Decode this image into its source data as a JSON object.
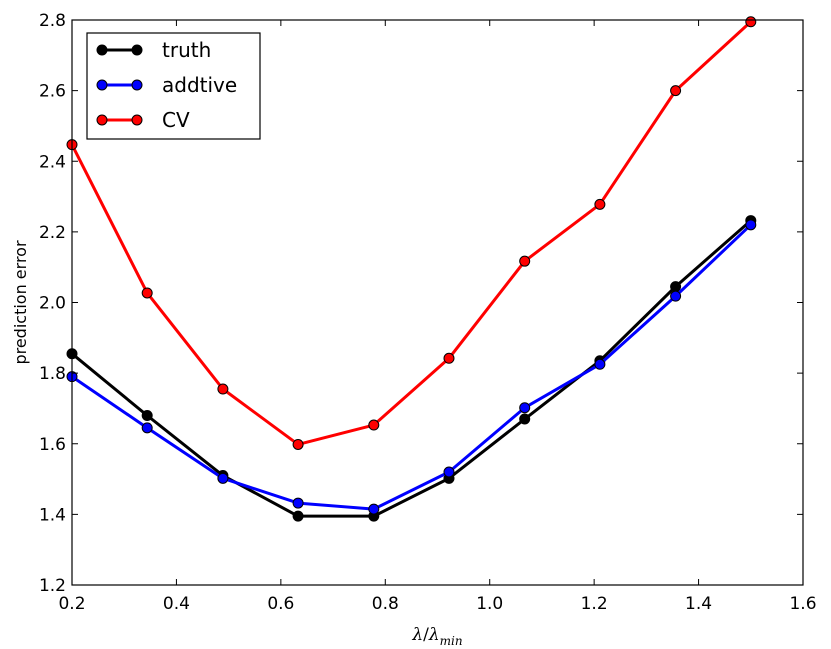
{
  "chart_data": {
    "type": "line",
    "x": [
      0.2,
      0.344,
      0.489,
      0.633,
      0.778,
      0.922,
      1.067,
      1.211,
      1.356,
      1.5
    ],
    "series": [
      {
        "name": "truth",
        "color": "#000000",
        "values": [
          1.855,
          1.68,
          1.51,
          1.395,
          1.395,
          1.502,
          1.67,
          1.835,
          2.045,
          2.232
        ]
      },
      {
        "name": "addtive",
        "color": "#0000ff",
        "values": [
          1.79,
          1.645,
          1.502,
          1.432,
          1.415,
          1.52,
          1.702,
          1.825,
          2.018,
          2.22
        ]
      },
      {
        "name": "CV",
        "color": "#ff0000",
        "values": [
          2.447,
          2.027,
          1.755,
          1.598,
          1.653,
          1.842,
          2.117,
          2.278,
          2.6,
          2.795
        ]
      }
    ],
    "xlabel_parts": {
      "lambda": "λ",
      "slash": "/",
      "sub": "min"
    },
    "ylabel": "prediction error",
    "xlim": [
      0.2,
      1.6
    ],
    "ylim": [
      1.2,
      2.8
    ],
    "xticks": [
      "0.2",
      "0.4",
      "0.6",
      "0.8",
      "1.0",
      "1.2",
      "1.4",
      "1.6"
    ],
    "yticks": [
      "1.2",
      "1.4",
      "1.6",
      "1.8",
      "2.0",
      "2.2",
      "2.4",
      "2.6",
      "2.8"
    ],
    "grid": false,
    "legend_position": "top-left"
  }
}
